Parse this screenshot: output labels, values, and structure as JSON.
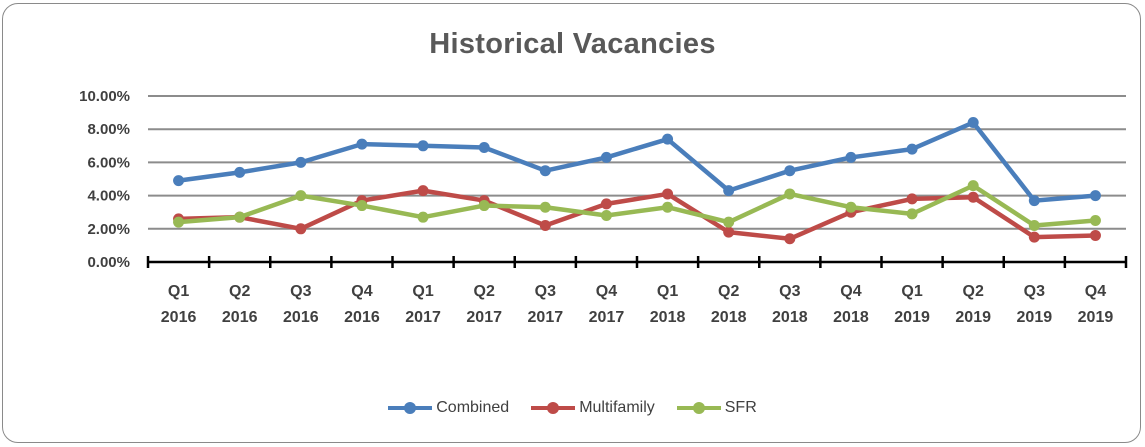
{
  "chart_data": {
    "type": "line",
    "title": "Historical Vacancies",
    "categories": [
      [
        "Q1",
        "2016"
      ],
      [
        "Q2",
        "2016"
      ],
      [
        "Q3",
        "2016"
      ],
      [
        "Q4",
        "2016"
      ],
      [
        "Q1",
        "2017"
      ],
      [
        "Q2",
        "2017"
      ],
      [
        "Q3",
        "2017"
      ],
      [
        "Q4",
        "2017"
      ],
      [
        "Q1",
        "2018"
      ],
      [
        "Q2",
        "2018"
      ],
      [
        "Q3",
        "2018"
      ],
      [
        "Q4",
        "2018"
      ],
      [
        "Q1",
        "2019"
      ],
      [
        "Q2",
        "2019"
      ],
      [
        "Q3",
        "2019"
      ],
      [
        "Q4",
        "2019"
      ]
    ],
    "y_ticks": [
      "0.00%",
      "2.00%",
      "4.00%",
      "6.00%",
      "8.00%",
      "10.00%"
    ],
    "ylim": [
      0,
      10
    ],
    "grid": true,
    "legend_position": "bottom",
    "series": [
      {
        "name": "Combined",
        "color": "#4a7ebb",
        "values": [
          4.9,
          5.4,
          6.0,
          7.1,
          7.0,
          6.9,
          5.5,
          6.3,
          7.4,
          4.3,
          5.5,
          6.3,
          6.8,
          8.4,
          3.7,
          4.0
        ]
      },
      {
        "name": "Multifamily",
        "color": "#be4b48",
        "values": [
          2.6,
          2.7,
          2.0,
          3.7,
          4.3,
          3.7,
          2.2,
          3.5,
          4.1,
          1.8,
          1.4,
          3.0,
          3.8,
          3.9,
          1.5,
          1.6
        ]
      },
      {
        "name": "SFR",
        "color": "#98b954",
        "values": [
          2.4,
          2.7,
          4.0,
          3.4,
          2.7,
          3.4,
          3.3,
          2.8,
          3.3,
          2.4,
          4.1,
          3.3,
          2.9,
          4.6,
          2.2,
          2.5
        ]
      }
    ]
  }
}
